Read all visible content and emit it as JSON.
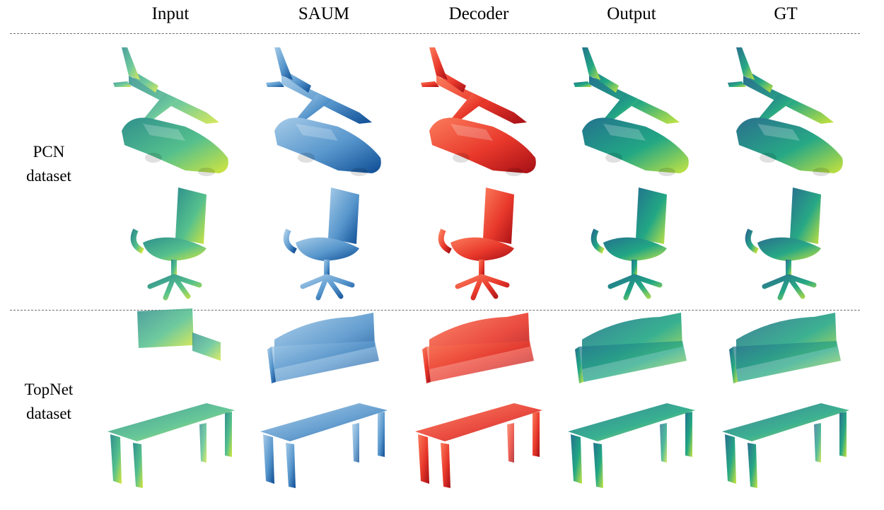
{
  "columns": [
    {
      "key": "input",
      "label": "Input",
      "colors": [
        "#2f8f8d",
        "#55c08d",
        "#d4e63c"
      ]
    },
    {
      "key": "saum",
      "label": "SAUM",
      "colors": [
        "#a6cbe8",
        "#5796cc",
        "#0d4c93"
      ]
    },
    {
      "key": "decoder",
      "label": "Decoder",
      "colors": [
        "#fb7c5c",
        "#e8382b",
        "#a50f15"
      ]
    },
    {
      "key": "output",
      "label": "Output",
      "colors": [
        "#23728e",
        "#22a784",
        "#c7e541"
      ]
    },
    {
      "key": "gt",
      "label": "GT",
      "colors": [
        "#2a6f8e",
        "#27a885",
        "#c9e33a"
      ]
    }
  ],
  "groups": [
    {
      "key": "pcn",
      "line1": "PCN",
      "line2": "dataset"
    },
    {
      "key": "topnet",
      "line1": "TopNet",
      "line2": "dataset"
    }
  ],
  "rows": [
    {
      "group": "pcn",
      "object": "airplane"
    },
    {
      "group": "pcn",
      "object": "car"
    },
    {
      "group": "pcn",
      "object": "chair"
    },
    {
      "group": "topnet",
      "object": "sofa"
    },
    {
      "group": "topnet",
      "object": "table"
    }
  ]
}
